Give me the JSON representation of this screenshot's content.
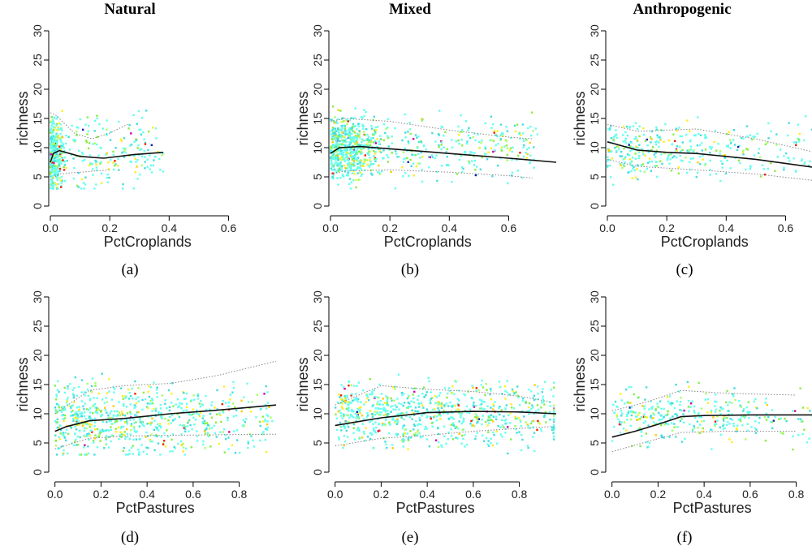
{
  "column_titles": [
    "Natural",
    "Mixed",
    "Anthropogenic"
  ],
  "chart_data": [
    {
      "panel": "(a)",
      "column": "Natural",
      "type": "scatter",
      "xlabel": "PctCroplands",
      "ylabel": "richness",
      "xlim": [
        0,
        0.76
      ],
      "ylim": [
        0,
        30
      ],
      "xticks": [
        0.0,
        0.2,
        0.4,
        0.6
      ],
      "xtick_labels": [
        "0.0",
        "0.2",
        "0.4",
        "0.6"
      ],
      "yticks": [
        0,
        5,
        10,
        15,
        20,
        25,
        30
      ],
      "points": {
        "count": 550,
        "x_range": [
          0,
          0.38
        ],
        "x_concentration": 0.015,
        "y_center": 9,
        "y_spread": 4.5
      },
      "series": [
        {
          "name": "",
          "style": "solid",
          "x": [
            0,
            0.01,
            0.03,
            0.1,
            0.18,
            0.28,
            0.38
          ],
          "y": [
            7.5,
            9,
            9.5,
            8.5,
            8.2,
            8.8,
            9.2
          ]
        },
        {
          "name": "",
          "style": "dotted",
          "x": [
            0,
            0.02,
            0.08,
            0.14,
            0.2,
            0.26
          ],
          "y": [
            16,
            15.5,
            12.5,
            11.5,
            12.5,
            14
          ]
        },
        {
          "name": "",
          "style": "dotted",
          "x": [
            0,
            0.03,
            0.1,
            0.2
          ],
          "y": [
            4.5,
            5.5,
            5.8,
            6.2
          ]
        }
      ]
    },
    {
      "panel": "(b)",
      "column": "Mixed",
      "type": "scatter",
      "xlabel": "PctCroplands",
      "ylabel": "richness",
      "xlim": [
        0,
        0.76
      ],
      "ylim": [
        0,
        30
      ],
      "xticks": [
        0.0,
        0.2,
        0.4,
        0.6
      ],
      "xtick_labels": [
        "0.0",
        "0.2",
        "0.4",
        "0.6"
      ],
      "yticks": [
        0,
        5,
        10,
        15,
        20,
        25,
        30
      ],
      "points": {
        "count": 900,
        "x_range": [
          0,
          0.7
        ],
        "x_concentration": 0.06,
        "y_center": 10,
        "y_spread": 4
      },
      "series": [
        {
          "name": "",
          "style": "solid",
          "x": [
            0,
            0.03,
            0.1,
            0.2,
            0.4,
            0.6,
            0.76
          ],
          "y": [
            9,
            10,
            10.2,
            9.8,
            9,
            8.2,
            7.5
          ]
        },
        {
          "name": "",
          "style": "dotted",
          "x": [
            0,
            0.05,
            0.2,
            0.4,
            0.6,
            0.68
          ],
          "y": [
            14.5,
            15,
            14.5,
            13,
            11.8,
            11.5
          ]
        },
        {
          "name": "",
          "style": "dotted",
          "x": [
            0,
            0.05,
            0.2,
            0.4,
            0.6,
            0.68
          ],
          "y": [
            5.5,
            6,
            6.2,
            5.8,
            5.2,
            4.8
          ]
        }
      ]
    },
    {
      "panel": "(c)",
      "column": "Anthropogenic",
      "type": "scatter",
      "xlabel": "PctCroplands",
      "ylabel": "richness",
      "xlim": [
        0,
        0.76
      ],
      "ylim": [
        0,
        30
      ],
      "xticks": [
        0.0,
        0.2,
        0.4,
        0.6
      ],
      "xtick_labels": [
        "0.0",
        "0.2",
        "0.4",
        "0.6"
      ],
      "yticks": [
        0,
        5,
        10,
        15,
        20,
        25,
        30
      ],
      "points": {
        "count": 380,
        "x_range": [
          0,
          0.76
        ],
        "x_concentration": 0.2,
        "y_center": 9.5,
        "y_spread": 3.5
      },
      "series": [
        {
          "name": "",
          "style": "solid",
          "x": [
            0,
            0.1,
            0.2,
            0.3,
            0.5,
            0.7,
            0.76
          ],
          "y": [
            11,
            9.6,
            9.2,
            9,
            8,
            6.6,
            6
          ]
        },
        {
          "name": "",
          "style": "dotted",
          "x": [
            0,
            0.1,
            0.3,
            0.5,
            0.76
          ],
          "y": [
            14,
            12.8,
            13.2,
            11.5,
            8.5
          ]
        },
        {
          "name": "",
          "style": "dotted",
          "x": [
            0,
            0.1,
            0.3,
            0.5,
            0.76
          ],
          "y": [
            8,
            6.8,
            6.2,
            5.5,
            4
          ]
        }
      ]
    },
    {
      "panel": "(d)",
      "column": "Natural",
      "type": "scatter",
      "xlabel": "PctPastures",
      "ylabel": "richness",
      "xlim": [
        -0.02,
        0.96
      ],
      "ylim": [
        0,
        30
      ],
      "xticks": [
        0.0,
        0.2,
        0.4,
        0.6,
        0.8
      ],
      "xtick_labels": [
        "0.0",
        "0.2",
        "0.4",
        "0.6",
        "0.8"
      ],
      "yticks": [
        0,
        5,
        10,
        15,
        20,
        25,
        30
      ],
      "points": {
        "count": 750,
        "x_range": [
          0,
          0.95
        ],
        "x_concentration": 0.25,
        "y_center": 9,
        "y_spread": 4.5
      },
      "series": [
        {
          "name": "",
          "style": "solid",
          "x": [
            0,
            0.05,
            0.15,
            0.3,
            0.5,
            0.7,
            0.96
          ],
          "y": [
            7,
            7.8,
            8.8,
            9.2,
            10,
            10.6,
            11.5
          ]
        },
        {
          "name": "",
          "style": "dotted",
          "x": [
            0,
            0.15,
            0.3,
            0.5,
            0.7,
            0.96
          ],
          "y": [
            10,
            14,
            14.8,
            15.2,
            16.5,
            19
          ]
        },
        {
          "name": "",
          "style": "dotted",
          "x": [
            0,
            0.15,
            0.3,
            0.5,
            0.7,
            0.96
          ],
          "y": [
            4,
            5.8,
            6.2,
            6.3,
            6.4,
            6.5
          ]
        }
      ]
    },
    {
      "panel": "(e)",
      "column": "Mixed",
      "type": "scatter",
      "xlabel": "PctPastures",
      "ylabel": "richness",
      "xlim": [
        -0.02,
        0.96
      ],
      "ylim": [
        0,
        30
      ],
      "xticks": [
        0.0,
        0.2,
        0.4,
        0.6,
        0.8
      ],
      "xtick_labels": [
        "0.0",
        "0.2",
        "0.4",
        "0.6",
        "0.8"
      ],
      "yticks": [
        0,
        5,
        10,
        15,
        20,
        25,
        30
      ],
      "points": {
        "count": 800,
        "x_range": [
          0,
          0.95
        ],
        "x_concentration": 0.4,
        "y_center": 10,
        "y_spread": 4
      },
      "series": [
        {
          "name": "",
          "style": "solid",
          "x": [
            0,
            0.2,
            0.4,
            0.6,
            0.8,
            0.96
          ],
          "y": [
            8,
            9.3,
            10.2,
            10.4,
            10.3,
            10
          ]
        },
        {
          "name": "",
          "style": "dotted",
          "x": [
            0,
            0.2,
            0.4,
            0.6,
            0.8,
            0.94
          ],
          "y": [
            11.5,
            14.8,
            14.2,
            13.8,
            13,
            12
          ]
        },
        {
          "name": "",
          "style": "dotted",
          "x": [
            0,
            0.2,
            0.4,
            0.6,
            0.8,
            0.94
          ],
          "y": [
            4.5,
            5.8,
            6.3,
            7,
            7.5,
            7.8
          ]
        }
      ]
    },
    {
      "panel": "(f)",
      "column": "Anthropogenic",
      "type": "scatter",
      "xlabel": "PctPastures",
      "ylabel": "richness",
      "xlim": [
        -0.02,
        0.96
      ],
      "ylim": [
        0,
        30
      ],
      "xticks": [
        0.0,
        0.2,
        0.4,
        0.6,
        0.8
      ],
      "xtick_labels": [
        "0.0",
        "0.2",
        "0.4",
        "0.6",
        "0.8"
      ],
      "yticks": [
        0,
        5,
        10,
        15,
        20,
        25,
        30
      ],
      "points": {
        "count": 350,
        "x_range": [
          0,
          0.9
        ],
        "x_concentration": 0.35,
        "y_center": 9.5,
        "y_spread": 3.5
      },
      "series": [
        {
          "name": "",
          "style": "solid",
          "x": [
            0,
            0.1,
            0.2,
            0.3,
            0.4,
            0.6,
            0.8,
            0.93
          ],
          "y": [
            6,
            7,
            8.2,
            9.5,
            9.7,
            9.8,
            9.8,
            9.8
          ]
        },
        {
          "name": "",
          "style": "dotted",
          "x": [
            0,
            0.15,
            0.3,
            0.5,
            0.8
          ],
          "y": [
            10.5,
            12,
            14,
            13.5,
            13.2
          ]
        },
        {
          "name": "",
          "style": "dotted",
          "x": [
            0,
            0.15,
            0.3,
            0.5,
            0.8
          ],
          "y": [
            3.5,
            5.2,
            6.8,
            7,
            7
          ]
        }
      ]
    }
  ],
  "point_colors": [
    "#66ffee",
    "#44dddd",
    "#88ee44",
    "#aaff66",
    "#ffee22",
    "#ffcc00",
    "#ee2200",
    "#cc00aa",
    "#1a1aaa"
  ],
  "line_color": "#111111",
  "ci_color": "#888888"
}
